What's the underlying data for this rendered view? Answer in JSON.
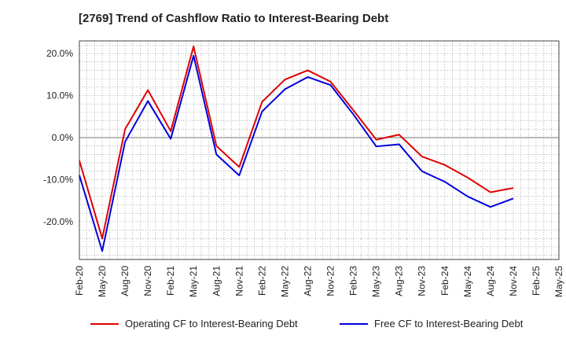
{
  "chart_data": {
    "type": "line",
    "title": "[2769]  Trend of Cashflow Ratio to Interest-Bearing Debt",
    "xlabel": "",
    "ylabel": "",
    "ylim": [
      -29,
      23
    ],
    "yticks": [
      20,
      10,
      0,
      -10,
      -20
    ],
    "ytick_labels": [
      "20.0%",
      "10.0%",
      "0.0%",
      "-10.0%",
      "-20.0%"
    ],
    "categories": [
      "Feb-20",
      "May-20",
      "Aug-20",
      "Nov-20",
      "Feb-21",
      "May-21",
      "Aug-21",
      "Nov-21",
      "Feb-22",
      "May-22",
      "Aug-22",
      "Nov-22",
      "Feb-23",
      "May-23",
      "Aug-23",
      "Nov-23",
      "Feb-24",
      "May-24",
      "Aug-24",
      "Nov-24",
      "Feb-25",
      "May-25"
    ],
    "grid": true,
    "legend_position": "bottom",
    "series": [
      {
        "name": "Operating CF to Interest-Bearing Debt",
        "color": "#e00000",
        "values": [
          -5.5,
          -24,
          2,
          11.3,
          1.5,
          21.7,
          -2,
          -7,
          8.5,
          13.8,
          16,
          13.3,
          6.5,
          -0.5,
          0.7,
          -4.5,
          -6.5,
          -9.5,
          -13,
          -12,
          null,
          null
        ]
      },
      {
        "name": "Free CF to Interest-Bearing Debt",
        "color": "#0000dd",
        "values": [
          -9,
          -27,
          -1,
          8.7,
          -0.3,
          19.5,
          -4,
          -9,
          6.2,
          11.5,
          14.4,
          12.5,
          5.5,
          -2.1,
          -1.6,
          -8,
          -10.5,
          -14,
          -16.5,
          -14.5,
          null,
          null
        ]
      }
    ]
  }
}
